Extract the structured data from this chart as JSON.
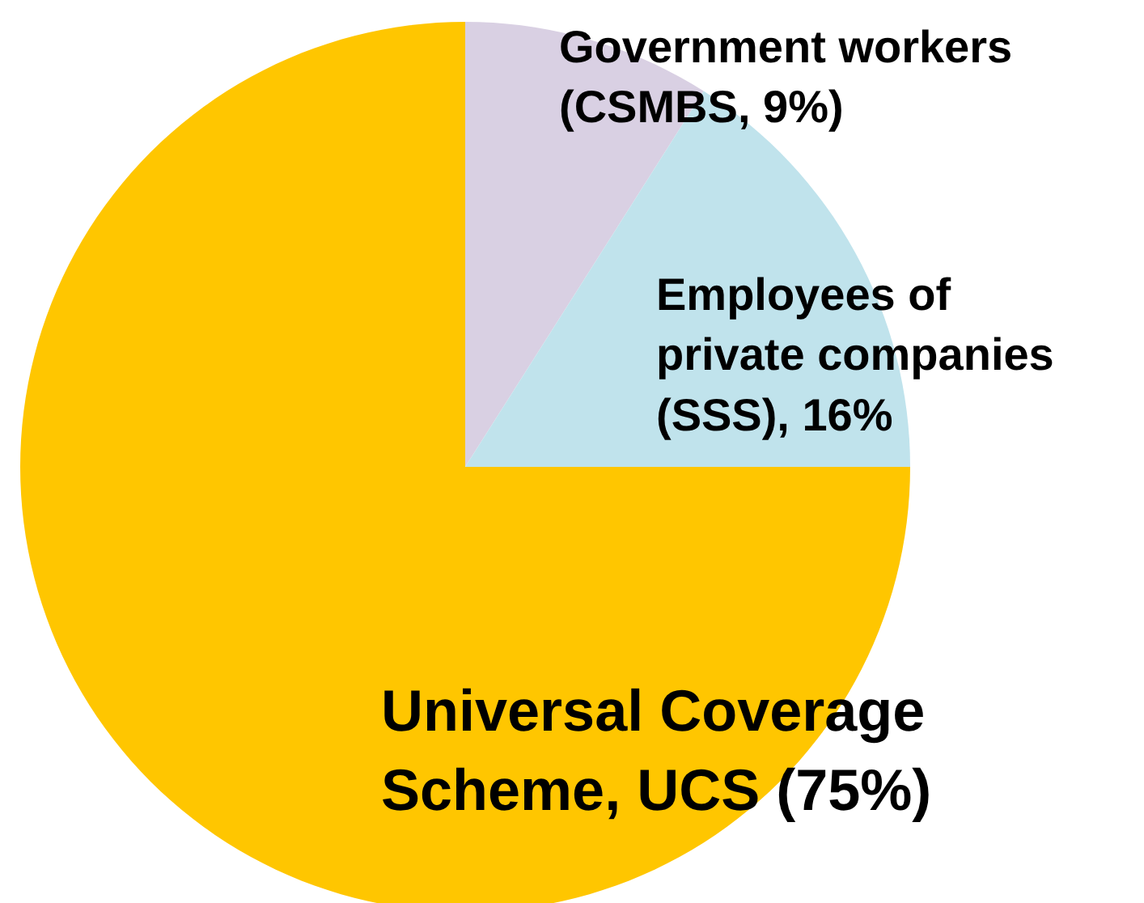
{
  "chart_data": {
    "type": "pie",
    "categories": [
      "Government workers\n(CSMBS, 9%)",
      "Employees of\nprivate companies\n(SSS), 16%",
      "Universal Coverage\nScheme, UCS (75%)"
    ],
    "values": [
      9,
      16,
      75
    ],
    "colors": [
      "#d9d0e3",
      "#c0e3ec",
      "#ffc600"
    ]
  }
}
